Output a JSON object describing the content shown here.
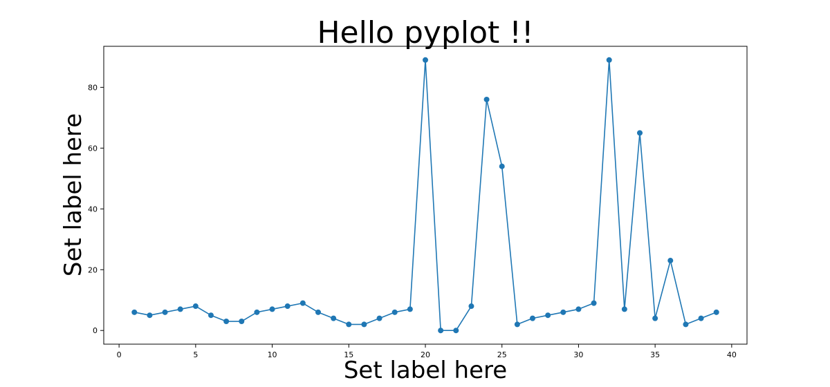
{
  "chart_data": {
    "type": "line",
    "title": "Hello pyplot !!",
    "xlabel": "Set label here",
    "ylabel": "Set label here",
    "xlim": [
      -1,
      41
    ],
    "ylim": [
      -4.5,
      93.5
    ],
    "x_ticks": [
      0,
      5,
      10,
      15,
      20,
      25,
      30,
      35,
      40
    ],
    "y_ticks": [
      0,
      20,
      40,
      60,
      80
    ],
    "grid": false,
    "colors": {
      "series": "#1f77b4",
      "axes": "#000000",
      "background": "#ffffff"
    },
    "series": [
      {
        "x": [
          1,
          2,
          3,
          4,
          5,
          6,
          7,
          8,
          9,
          10,
          11,
          12,
          13,
          14,
          15,
          16,
          17,
          18,
          19,
          20,
          21,
          22,
          23,
          24,
          25,
          26,
          27,
          28,
          29,
          30,
          31,
          32,
          33,
          34,
          35,
          36,
          37,
          38,
          39
        ],
        "y": [
          6,
          5,
          6,
          7,
          8,
          5,
          3,
          3,
          6,
          7,
          8,
          9,
          6,
          4,
          2,
          2,
          4,
          6,
          7,
          89,
          0,
          0,
          8,
          76,
          54,
          2,
          4,
          5,
          6,
          7,
          9,
          89,
          7,
          65,
          4,
          23,
          2,
          4,
          6
        ],
        "marker": "circle"
      }
    ]
  }
}
